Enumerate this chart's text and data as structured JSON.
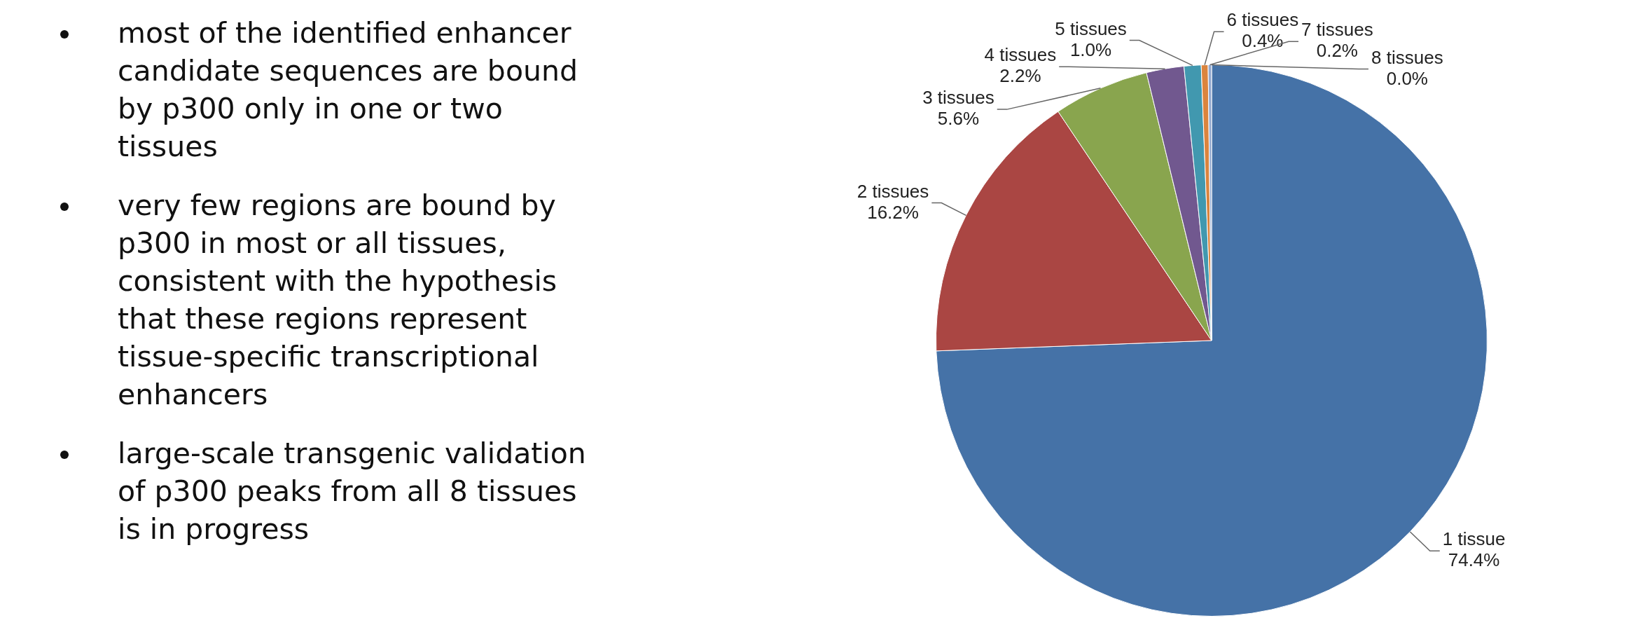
{
  "chart_data": {
    "type": "pie",
    "categories": [
      "1 tissue",
      "2 tissues",
      "3 tissues",
      "4 tissues",
      "5 tissues",
      "6 tissues",
      "7 tissues",
      "8 tissues"
    ],
    "values": [
      74.4,
      16.2,
      5.6,
      2.2,
      1.0,
      0.4,
      0.2,
      0.0
    ],
    "value_labels": [
      "74.4%",
      "16.2%",
      "5.6%",
      "2.2%",
      "1.0%",
      "0.4%",
      "0.2%",
      "0.0%"
    ],
    "colors": [
      "#4572a7",
      "#aa4643",
      "#89a54e",
      "#71588f",
      "#4198af",
      "#db843d",
      "#93a9cf",
      "#b9cd96"
    ],
    "legend": false,
    "annotations": [
      "most of the identified enhancer candidate sequences are bound by p300 only in one or two tissues",
      "very few regions are bound by p300 in most or all tissues, consistent with the hypothesis that these regions represent tissue-specific transcriptional enhancers",
      "large-scale transgenic validation of p300 peaks from all 8 tissues is in progress"
    ]
  }
}
